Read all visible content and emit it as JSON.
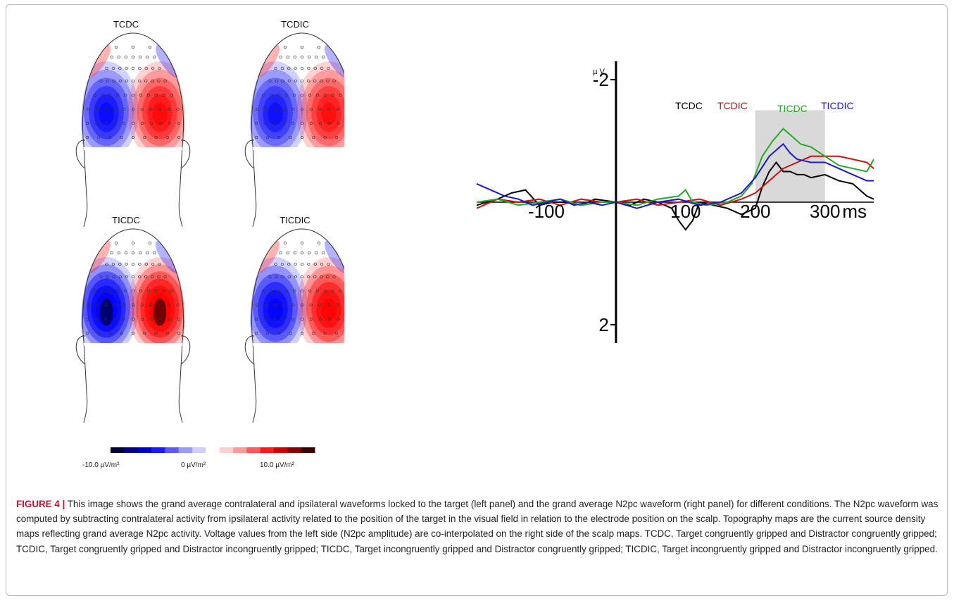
{
  "topomaps": {
    "maps": [
      {
        "title": "TCDC",
        "intensity": 0.6
      },
      {
        "title": "TCDIC",
        "intensity": 0.5
      },
      {
        "title": "TICDC",
        "intensity": 1.0
      },
      {
        "title": "TICDIC",
        "intensity": 0.78
      }
    ],
    "colorbar": {
      "min_label": "-10.0 µV/m²",
      "mid_label": "0 µV/m²",
      "max_label": "10.0 µV/m²",
      "negative_color": "#0000ff",
      "positive_color": "#ff0000"
    }
  },
  "chart_data": {
    "type": "line",
    "ylabel": "µ V",
    "xunit": "ms",
    "x_ticks": [
      "-100",
      "100",
      "200",
      "300"
    ],
    "y_ticks": [
      "-2",
      "2"
    ],
    "xlim": [
      -200,
      370
    ],
    "ylim": [
      -2.3,
      2.3
    ],
    "y_inverted": true,
    "highlight_window": [
      200,
      300
    ],
    "series": [
      {
        "name": "TCDC",
        "color": "#000000",
        "x": [
          -200,
          -170,
          -150,
          -130,
          -110,
          -90,
          -70,
          -50,
          -30,
          0,
          20,
          40,
          60,
          80,
          90,
          100,
          110,
          120,
          140,
          160,
          180,
          200,
          210,
          220,
          230,
          240,
          250,
          260,
          270,
          280,
          300,
          320,
          340,
          360,
          370
        ],
        "y": [
          0.05,
          -0.05,
          -0.15,
          -0.2,
          0.05,
          0.0,
          0.0,
          0.05,
          -0.05,
          0.0,
          0.05,
          -0.05,
          0.0,
          0.1,
          0.3,
          0.45,
          0.3,
          0.0,
          0.05,
          0.1,
          0.2,
          0.1,
          -0.25,
          -0.5,
          -0.65,
          -0.5,
          -0.5,
          -0.45,
          -0.45,
          -0.4,
          -0.45,
          -0.35,
          -0.3,
          -0.1,
          -0.05
        ]
      },
      {
        "name": "TCDIC",
        "color": "#cc1111",
        "x": [
          -200,
          -170,
          -140,
          -110,
          -80,
          -50,
          -20,
          0,
          30,
          60,
          90,
          120,
          150,
          180,
          200,
          220,
          240,
          260,
          280,
          300,
          320,
          340,
          360,
          370
        ],
        "y": [
          0.1,
          -0.05,
          0.0,
          -0.05,
          0.05,
          -0.05,
          0.0,
          0.0,
          -0.05,
          0.05,
          0.0,
          -0.05,
          0.05,
          -0.05,
          -0.15,
          -0.35,
          -0.55,
          -0.65,
          -0.75,
          -0.75,
          -0.75,
          -0.7,
          -0.65,
          -0.55
        ]
      },
      {
        "name": "TICDC",
        "color": "#22aa22",
        "x": [
          -200,
          -170,
          -140,
          -110,
          -80,
          -50,
          -20,
          0,
          30,
          60,
          90,
          100,
          110,
          130,
          160,
          180,
          195,
          210,
          225,
          240,
          250,
          265,
          280,
          300,
          320,
          340,
          360,
          370
        ],
        "y": [
          0.0,
          -0.05,
          0.05,
          0.0,
          -0.05,
          0.05,
          0.0,
          0.0,
          0.05,
          -0.05,
          -0.1,
          -0.2,
          0.0,
          0.05,
          0.0,
          -0.1,
          -0.3,
          -0.75,
          -1.0,
          -1.2,
          -1.1,
          -0.95,
          -0.9,
          -0.75,
          -0.6,
          -0.55,
          -0.5,
          -0.7
        ]
      },
      {
        "name": "TICDIC",
        "color": "#1a1acc",
        "x": [
          -200,
          -180,
          -160,
          -140,
          -120,
          -100,
          -80,
          -60,
          -40,
          -20,
          0,
          30,
          60,
          90,
          120,
          150,
          180,
          200,
          220,
          240,
          250,
          260,
          280,
          300,
          320,
          340,
          360,
          370
        ],
        "y": [
          -0.3,
          -0.2,
          -0.1,
          -0.05,
          0.05,
          0.0,
          -0.05,
          0.05,
          0.0,
          0.05,
          0.0,
          0.1,
          0.0,
          -0.05,
          0.05,
          0.0,
          -0.15,
          -0.4,
          -0.75,
          -0.95,
          -0.8,
          -0.7,
          -0.65,
          -0.65,
          -0.55,
          -0.45,
          -0.35,
          -0.35
        ]
      }
    ]
  },
  "caption": {
    "label": "FIGURE 4",
    "separator": "|",
    "text": "This image shows the grand average contralateral and ipsilateral waveforms locked to the target (left panel) and the grand average N2pc waveform (right panel) for different conditions. The N2pc waveform was computed by subtracting contralateral activity from ipsilateral activity related to the position of the target in the visual field in relation to the electrode position on the scalp. Topography maps are the current source density maps reflecting grand average N2pc activity. Voltage values from the left side (N2pc amplitude) are co-interpolated on the right side of the scalp maps. TCDC, Target congruently gripped and Distractor congruently gripped; TCDIC, Target congruently gripped and Distractor incongruently gripped; TICDC, Target incongruently gripped and Distractor congruently gripped; TICDIC, Target incongruently gripped and Distractor incongruently gripped."
  }
}
